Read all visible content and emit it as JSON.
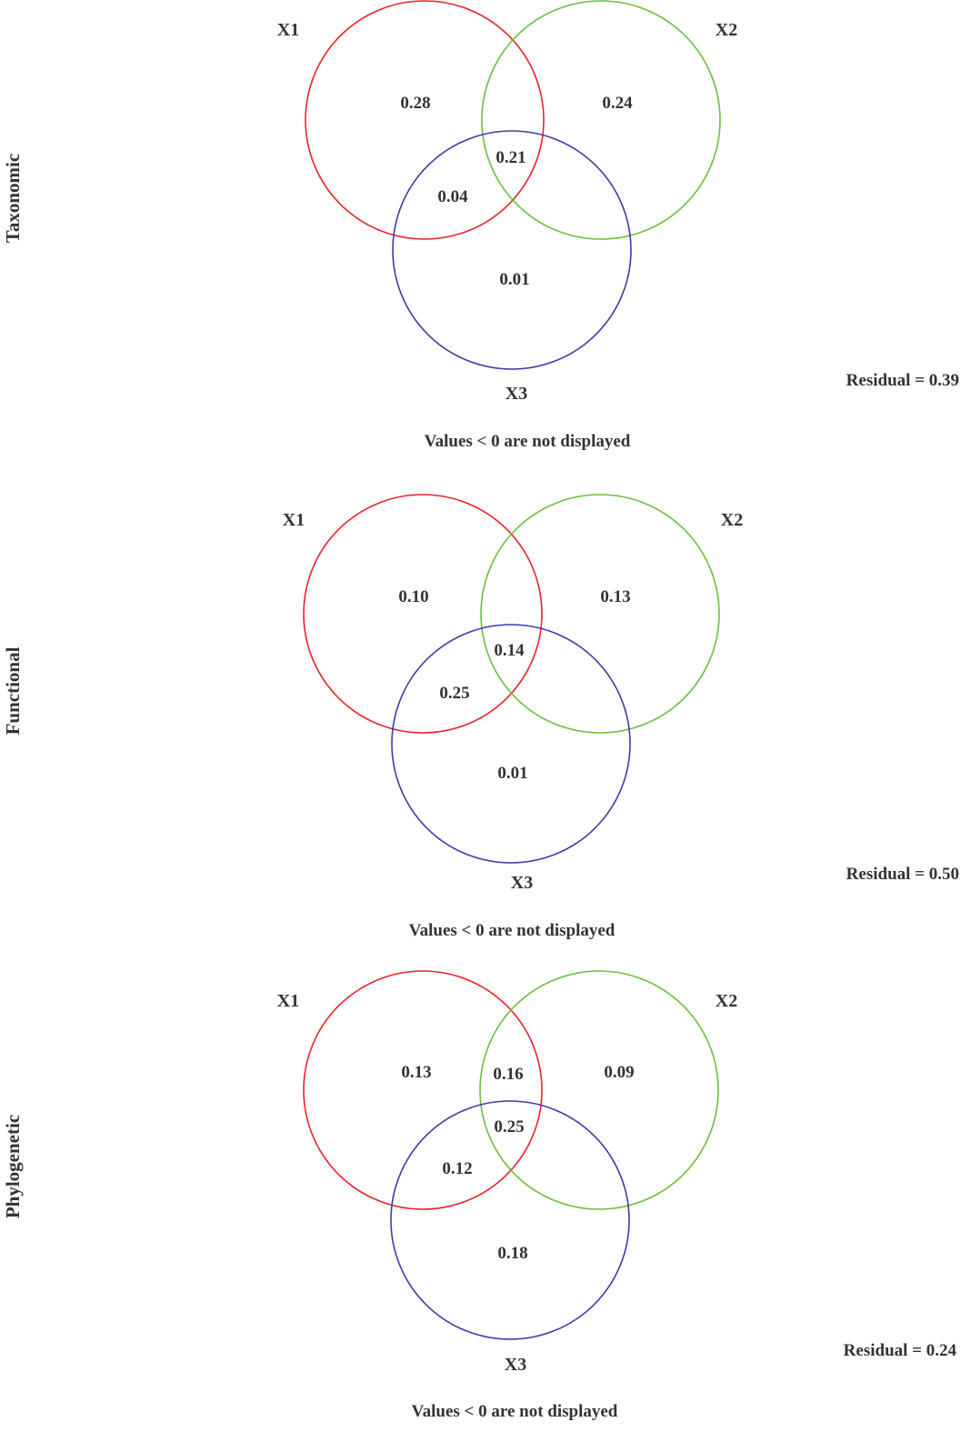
{
  "colors": {
    "X1": "#e8232c",
    "X2": "#6cbf3c",
    "X3": "#3b3ea6",
    "text": "#333333"
  },
  "panels": [
    {
      "row_label": "Taxonomic",
      "sets": [
        "X1",
        "X2",
        "X3"
      ],
      "regions": {
        "x1_only": "0.28",
        "x2_only": "0.24",
        "x1_x2": "",
        "x1_x2_x3": "0.21",
        "x1_x3": "0.04",
        "x3_only": "0.01"
      },
      "residual": "Residual = 0.39",
      "footnote": "Values < 0 are not displayed"
    },
    {
      "row_label": "Functional",
      "sets": [
        "X1",
        "X2",
        "X3"
      ],
      "regions": {
        "x1_only": "0.10",
        "x2_only": "0.13",
        "x1_x2": "",
        "x1_x2_x3": "0.14",
        "x1_x3": "0.25",
        "x3_only": "0.01"
      },
      "residual": "Residual = 0.50",
      "footnote": "Values < 0 are not displayed"
    },
    {
      "row_label": "Phylogenetic",
      "sets": [
        "X1",
        "X2",
        "X3"
      ],
      "regions": {
        "x1_only": "0.13",
        "x2_only": "0.09",
        "x1_x2": "0.16",
        "x1_x2_x3": "0.25",
        "x1_x3": "0.12",
        "x3_only": "0.18"
      },
      "residual": "Residual = 0.24",
      "footnote": "Values < 0 are not displayed"
    }
  ]
}
